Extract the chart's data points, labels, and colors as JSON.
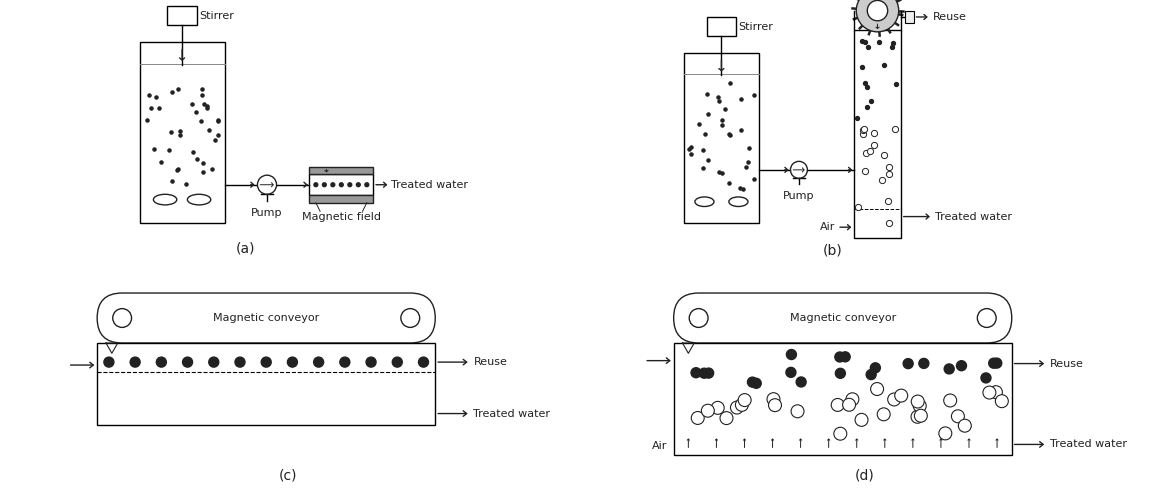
{
  "fig_width": 11.53,
  "fig_height": 4.9,
  "bg_color": "#ffffff",
  "label_a": "(a)",
  "label_b": "(b)",
  "label_c": "(c)",
  "label_d": "(d)",
  "font_size": 8,
  "font_size_label": 10,
  "line_color": "#222222"
}
